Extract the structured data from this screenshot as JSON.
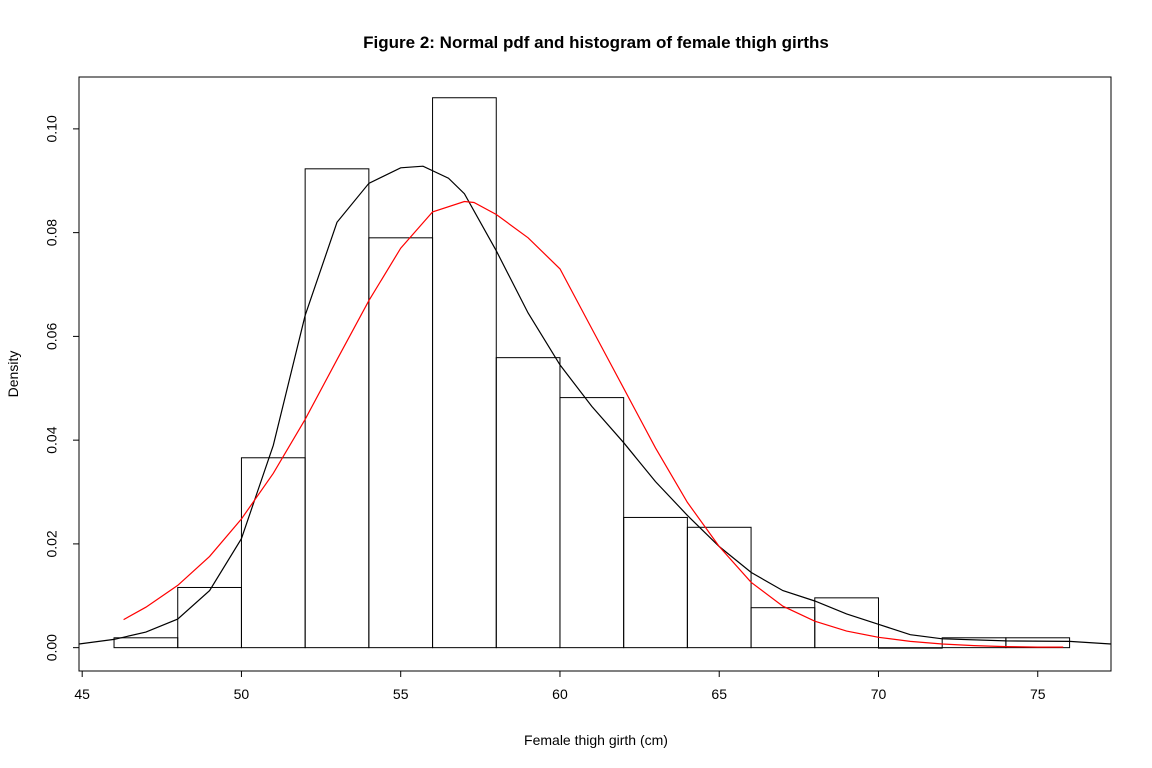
{
  "chart_data": {
    "type": "histogram",
    "title": "Figure 2: Normal pdf and histogram of female thigh girths",
    "xlabel": "Female thigh girth (cm)",
    "ylabel": "Density",
    "xlim": [
      44.9,
      77.3
    ],
    "ylim": [
      -0.0045,
      0.11
    ],
    "x_ticks": [
      45,
      50,
      55,
      60,
      65,
      70,
      75
    ],
    "y_ticks": [
      0.0,
      0.02,
      0.04,
      0.06,
      0.08,
      0.1
    ],
    "x_tick_labels": [
      "45",
      "50",
      "55",
      "60",
      "65",
      "70",
      "75"
    ],
    "y_tick_labels": [
      "0.00",
      "0.02",
      "0.04",
      "0.06",
      "0.08",
      "0.10"
    ],
    "grid": false,
    "legend": "none",
    "histogram": {
      "bin_edges": [
        46,
        48,
        50,
        52,
        54,
        56,
        58,
        60,
        62,
        64,
        66,
        68,
        70,
        72,
        74,
        76
      ],
      "density": [
        0.0019,
        0.0116,
        0.0366,
        0.0923,
        0.079,
        0.106,
        0.0559,
        0.0482,
        0.0251,
        0.0232,
        0.0077,
        0.0096,
        0.0,
        0.0019,
        0.0019
      ],
      "color": "#000000"
    },
    "series": [
      {
        "kind": "density",
        "color": "#000000",
        "x": [
          44.9,
          46,
          47,
          48,
          49,
          50,
          51,
          52,
          53,
          54,
          55,
          55.7,
          56.5,
          57,
          58,
          59,
          60,
          61,
          62,
          63,
          64,
          65,
          66,
          67,
          68,
          69,
          70,
          71,
          72,
          74,
          76,
          77.3
        ],
        "y": [
          0.0007,
          0.0016,
          0.003,
          0.0055,
          0.011,
          0.021,
          0.039,
          0.064,
          0.082,
          0.0895,
          0.0925,
          0.0928,
          0.0905,
          0.0875,
          0.0765,
          0.0645,
          0.0545,
          0.0465,
          0.0395,
          0.032,
          0.0255,
          0.0195,
          0.0145,
          0.011,
          0.009,
          0.0065,
          0.0045,
          0.0025,
          0.0017,
          0.0013,
          0.0012,
          0.0007
        ]
      },
      {
        "kind": "normal-pdf",
        "color": "#ff0000",
        "x": [
          46.3,
          47,
          48,
          49,
          50,
          51,
          52,
          53,
          54,
          55,
          56,
          57,
          57.3,
          58,
          59,
          60,
          61,
          62,
          63,
          64,
          65,
          66,
          67,
          68,
          69,
          70,
          71,
          72,
          73,
          74,
          75,
          75.8
        ],
        "y": [
          0.0054,
          0.0078,
          0.012,
          0.0176,
          0.0248,
          0.0336,
          0.044,
          0.0555,
          0.0669,
          0.077,
          0.084,
          0.086,
          0.0858,
          0.0835,
          0.079,
          0.073,
          0.0615,
          0.05,
          0.0385,
          0.028,
          0.0195,
          0.0126,
          0.008,
          0.0051,
          0.0032,
          0.002,
          0.0012,
          0.0007,
          0.0004,
          0.0002,
          0.0001,
          0.0001
        ]
      }
    ]
  }
}
